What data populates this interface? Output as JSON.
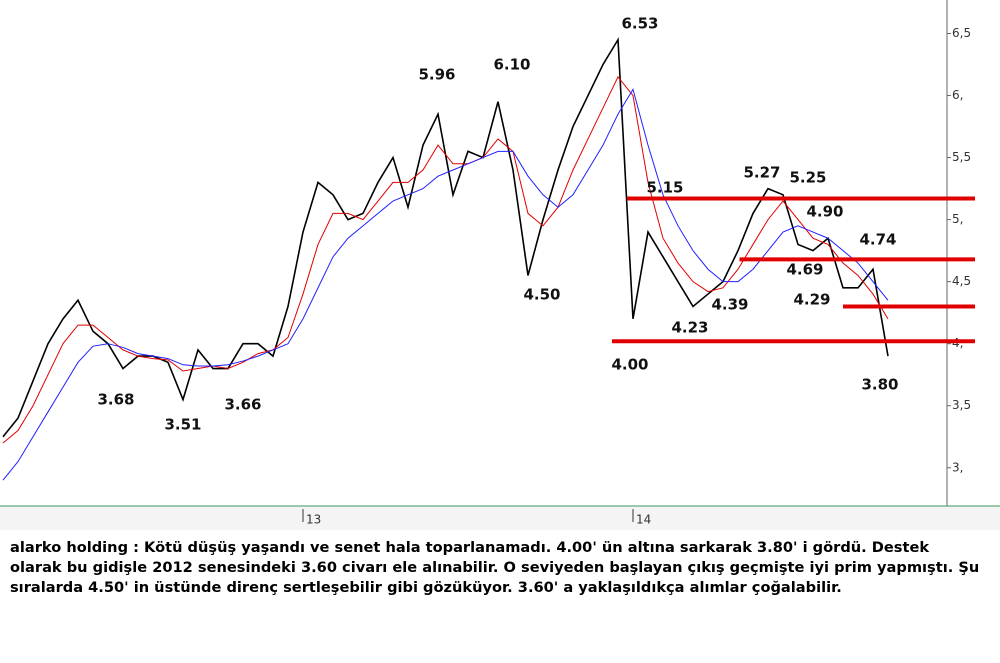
{
  "chart_data": {
    "type": "line",
    "categories": [
      null,
      null,
      null,
      null,
      null,
      null,
      null,
      null,
      null,
      null,
      null,
      null,
      null,
      null,
      null,
      null,
      null,
      null,
      null,
      null,
      "13",
      null,
      null,
      null,
      null,
      null,
      null,
      null,
      null,
      null,
      null,
      null,
      null,
      null,
      null,
      null,
      null,
      null,
      null,
      null,
      null,
      null,
      "14",
      null,
      null,
      null,
      null,
      null,
      null,
      null,
      null,
      null,
      null,
      null,
      null,
      null,
      null,
      null,
      null,
      null
    ],
    "series": [
      {
        "color": "#000000",
        "values": [
          3.25,
          3.4,
          3.7,
          4.0,
          4.2,
          4.35,
          4.1,
          4.0,
          3.8,
          3.9,
          3.9,
          3.85,
          3.55,
          3.95,
          3.8,
          3.8,
          4.0,
          4.0,
          3.9,
          4.3,
          4.9,
          5.3,
          5.2,
          5.0,
          5.05,
          5.3,
          5.5,
          5.1,
          5.6,
          5.85,
          5.2,
          5.55,
          5.5,
          5.95,
          5.4,
          4.55,
          5.0,
          5.4,
          5.75,
          6.0,
          6.25,
          6.45,
          4.2,
          4.9,
          4.7,
          4.5,
          4.3,
          4.4,
          4.5,
          4.75,
          5.05,
          5.25,
          5.2,
          4.8,
          4.75,
          4.85,
          4.45,
          4.45,
          4.6,
          3.9
        ]
      },
      {
        "color": "#e00000",
        "values": [
          3.2,
          3.3,
          3.5,
          3.75,
          4.0,
          4.15,
          4.15,
          4.05,
          3.95,
          3.9,
          3.88,
          3.87,
          3.78,
          3.8,
          3.82,
          3.8,
          3.85,
          3.92,
          3.95,
          4.05,
          4.4,
          4.8,
          5.05,
          5.05,
          5.0,
          5.15,
          5.3,
          5.3,
          5.4,
          5.6,
          5.45,
          5.45,
          5.5,
          5.65,
          5.55,
          5.05,
          4.95,
          5.1,
          5.4,
          5.65,
          5.9,
          6.15,
          6.0,
          5.3,
          4.85,
          4.65,
          4.5,
          4.42,
          4.45,
          4.6,
          4.8,
          5.0,
          5.15,
          5.0,
          4.85,
          4.8,
          4.65,
          4.55,
          4.4,
          4.2
        ]
      },
      {
        "color": "#2020ff",
        "values": [
          2.9,
          3.05,
          3.25,
          3.45,
          3.65,
          3.85,
          3.98,
          4.0,
          3.97,
          3.92,
          3.9,
          3.88,
          3.83,
          3.82,
          3.82,
          3.83,
          3.86,
          3.9,
          3.95,
          4.0,
          4.2,
          4.45,
          4.7,
          4.85,
          4.95,
          5.05,
          5.15,
          5.2,
          5.25,
          5.35,
          5.4,
          5.45,
          5.5,
          5.55,
          5.55,
          5.35,
          5.2,
          5.1,
          5.2,
          5.4,
          5.6,
          5.85,
          6.05,
          5.6,
          5.2,
          4.95,
          4.75,
          4.6,
          4.5,
          4.5,
          4.6,
          4.75,
          4.9,
          4.95,
          4.9,
          4.85,
          4.75,
          4.65,
          4.5,
          4.35
        ]
      }
    ],
    "levels": [
      {
        "value": 5.17,
        "start_index": 41.6
      },
      {
        "value": 4.68,
        "start_index": 49.1
      },
      {
        "value": 4.3,
        "start_index": 56
      },
      {
        "value": 4.02,
        "start_index": 40.6
      }
    ],
    "level_color": "#e00000",
    "annotations": [
      "6.53",
      "5.96",
      "6.10",
      "4.50",
      "3.68",
      "3.51",
      "3.66",
      "5.15",
      "4.00",
      "4.23",
      "4.39",
      "5.27",
      "5.25",
      "4.90",
      "4.69",
      "4.74",
      "4.29",
      "3.80"
    ],
    "ylim": [
      2.7,
      6.77
    ],
    "yticks": [
      {
        "value": 3,
        "label": "3,"
      },
      {
        "value": 3.5,
        "label": "3,5"
      },
      {
        "value": 4,
        "label": "4,"
      },
      {
        "value": 4.5,
        "label": "4,5"
      },
      {
        "value": 5,
        "label": "5,"
      },
      {
        "value": 5.5,
        "label": "5,5"
      },
      {
        "value": 6,
        "label": "6,"
      },
      {
        "value": 6.5,
        "label": "6,5"
      }
    ]
  },
  "caption": "alarko holding : Kötü düşüş yaşandı ve senet hala toparlanamadı. 4.00' ün altına sarkarak 3.80' i gördü. Destek olarak bu gidişle 2012 senesindeki 3.60 civarı ele alınabilir. O seviyeden başlayan çıkış geçmişte iyi prim yapmıştı. Şu sıralarda 4.50' in üstünde direnç sertleşebilir gibi gözüküyor. 3.60' a yaklaşıldıkça alımlar çoğalabilir."
}
